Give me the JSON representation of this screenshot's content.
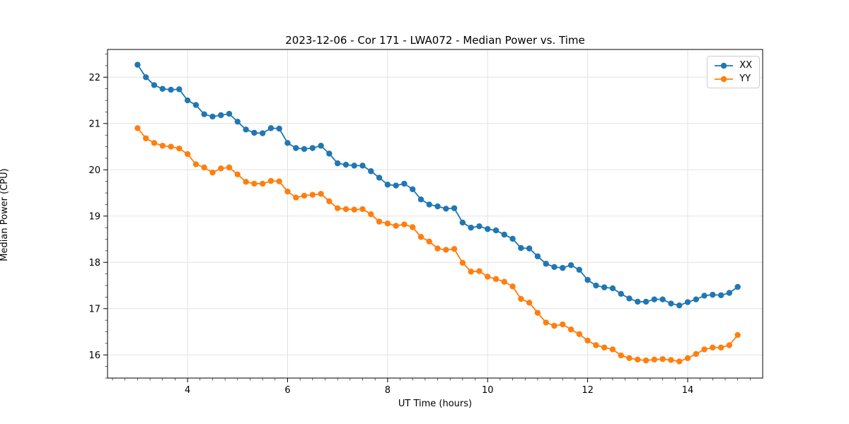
{
  "figure": {
    "title": "2023-12-06 - Cor 171 - LWA072 - Median Power vs. Time",
    "xlabel": "UT Time (hours)",
    "ylabel": "Median Power (CPU)"
  },
  "legend": {
    "entries": [
      {
        "label": "XX",
        "color": "#1f77b4"
      },
      {
        "label": "YY",
        "color": "#ff7f0e"
      }
    ]
  },
  "chart_data": {
    "type": "line",
    "title": "2023-12-06 - Cor 171 - LWA072 - Median Power vs. Time",
    "xlabel": "UT Time (hours)",
    "ylabel": "Median Power (CPU)",
    "xlim": [
      2.4,
      15.5
    ],
    "ylim": [
      15.5,
      22.6
    ],
    "x_ticks": [
      4,
      6,
      8,
      10,
      12,
      14
    ],
    "y_ticks": [
      16,
      17,
      18,
      19,
      20,
      21,
      22
    ],
    "x_minor_step": 0.25,
    "y_minor_step": 0.25,
    "grid": true,
    "legend_position": "upper right",
    "marker": "circle",
    "x": [
      3.0,
      3.167,
      3.333,
      3.5,
      3.667,
      3.833,
      4.0,
      4.167,
      4.333,
      4.5,
      4.667,
      4.833,
      5.0,
      5.167,
      5.333,
      5.5,
      5.667,
      5.833,
      6.0,
      6.167,
      6.333,
      6.5,
      6.667,
      6.833,
      7.0,
      7.167,
      7.333,
      7.5,
      7.667,
      7.833,
      8.0,
      8.167,
      8.333,
      8.5,
      8.667,
      8.833,
      9.0,
      9.167,
      9.333,
      9.5,
      9.667,
      9.833,
      10.0,
      10.167,
      10.333,
      10.5,
      10.667,
      10.833,
      11.0,
      11.167,
      11.333,
      11.5,
      11.667,
      11.833,
      12.0,
      12.167,
      12.333,
      12.5,
      12.667,
      12.833,
      13.0,
      13.167,
      13.333,
      13.5,
      13.667,
      13.833,
      14.0,
      14.167,
      14.333,
      14.5,
      14.667,
      14.833,
      15.0
    ],
    "series": [
      {
        "name": "XX",
        "color": "#1f77b4",
        "values": [
          22.27,
          22.0,
          21.83,
          21.75,
          21.73,
          21.74,
          21.5,
          21.4,
          21.2,
          21.15,
          21.18,
          21.21,
          21.04,
          20.87,
          20.8,
          20.79,
          20.9,
          20.89,
          20.58,
          20.47,
          20.45,
          20.47,
          20.52,
          20.35,
          20.14,
          20.11,
          20.09,
          20.09,
          19.97,
          19.83,
          19.68,
          19.66,
          19.7,
          19.58,
          19.36,
          19.25,
          19.21,
          19.16,
          19.17,
          18.86,
          18.75,
          18.78,
          18.72,
          18.69,
          18.6,
          18.51,
          18.31,
          18.3,
          18.13,
          17.97,
          17.9,
          17.88,
          17.94,
          17.84,
          17.62,
          17.5,
          17.46,
          17.44,
          17.32,
          17.22,
          17.15,
          17.15,
          17.2,
          17.2,
          17.11,
          17.07,
          17.14,
          17.2,
          17.28,
          17.3,
          17.29,
          17.34,
          17.47
        ]
      },
      {
        "name": "YY",
        "color": "#ff7f0e",
        "values": [
          20.9,
          20.68,
          20.58,
          20.52,
          20.5,
          20.46,
          20.34,
          20.12,
          20.05,
          19.94,
          20.03,
          20.05,
          19.9,
          19.74,
          19.7,
          19.7,
          19.76,
          19.75,
          19.53,
          19.4,
          19.44,
          19.46,
          19.48,
          19.32,
          19.17,
          19.15,
          19.14,
          19.15,
          19.04,
          18.88,
          18.84,
          18.79,
          18.82,
          18.76,
          18.55,
          18.45,
          18.3,
          18.27,
          18.29,
          17.99,
          17.8,
          17.81,
          17.69,
          17.64,
          17.58,
          17.48,
          17.21,
          17.13,
          16.91,
          16.7,
          16.63,
          16.66,
          16.55,
          16.45,
          16.31,
          16.21,
          16.16,
          16.12,
          15.99,
          15.93,
          15.9,
          15.88,
          15.9,
          15.91,
          15.89,
          15.86,
          15.93,
          16.02,
          16.12,
          16.16,
          16.16,
          16.21,
          16.43
        ]
      }
    ]
  },
  "style": {
    "grid_color": "#e2e2e2",
    "spine_color": "#000000",
    "tick_color": "#000000"
  }
}
